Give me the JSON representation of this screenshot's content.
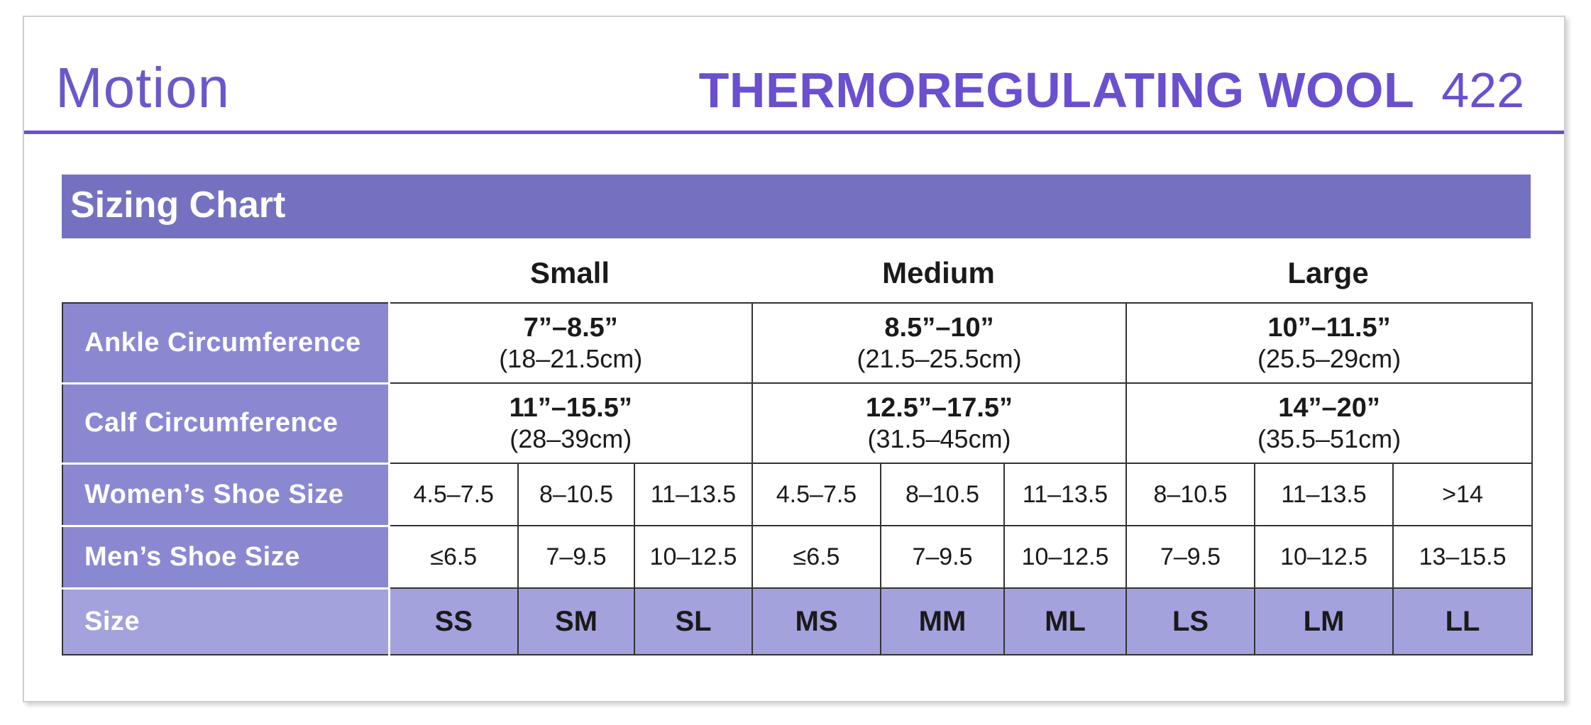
{
  "header": {
    "brand": "Motion",
    "product_name": "THERMOREGULATING WOOL",
    "product_number": "422"
  },
  "banner": {
    "title": "Sizing Chart"
  },
  "groups": [
    "Small",
    "Medium",
    "Large"
  ],
  "rows": {
    "ankle": {
      "label": "Ankle Circumference",
      "values": [
        {
          "in": "7”–8.5”",
          "cm": "(18–21.5cm)"
        },
        {
          "in": "8.5”–10”",
          "cm": "(21.5–25.5cm)"
        },
        {
          "in": "10”–11.5”",
          "cm": "(25.5–29cm)"
        }
      ]
    },
    "calf": {
      "label": "Calf Circumference",
      "values": [
        {
          "in": "11”–15.5”",
          "cm": "(28–39cm)"
        },
        {
          "in": "12.5”–17.5”",
          "cm": "(31.5–45cm)"
        },
        {
          "in": "14”–20”",
          "cm": "(35.5–51cm)"
        }
      ]
    },
    "women": {
      "label": "Women’s Shoe Size",
      "values": [
        "4.5–7.5",
        "8–10.5",
        "11–13.5",
        "4.5–7.5",
        "8–10.5",
        "11–13.5",
        "8–10.5",
        "11–13.5",
        ">14"
      ]
    },
    "men": {
      "label": "Men’s Shoe Size",
      "values": [
        "≤6.5",
        "7–9.5",
        "10–12.5",
        "≤6.5",
        "7–9.5",
        "10–12.5",
        "7–9.5",
        "10–12.5",
        "13–15.5"
      ]
    },
    "size": {
      "label": "Size",
      "values": [
        "SS",
        "SM",
        "SL",
        "MS",
        "MM",
        "ML",
        "LS",
        "LM",
        "LL"
      ]
    }
  },
  "colors": {
    "accent": "#6a4fcf",
    "banner": "#7472c0",
    "label_cell": "#8b88d2",
    "size_row": "#a4a2dd"
  }
}
